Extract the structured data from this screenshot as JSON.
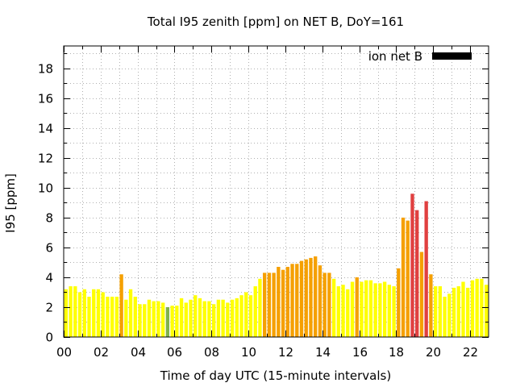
{
  "chart_data": {
    "type": "bar",
    "title": "Total I95 zenith [ppm] on NET B, DoY=161",
    "xlabel": "Time of day UTC (15-minute intervals)",
    "ylabel": "I95 [ppm]",
    "xlim": [
      0,
      23
    ],
    "ylim": [
      0,
      19.5
    ],
    "yticks": [
      0,
      2,
      4,
      6,
      8,
      10,
      12,
      14,
      16,
      18
    ],
    "xticks": [
      0,
      2,
      4,
      6,
      8,
      10,
      12,
      14,
      16,
      18,
      20,
      22
    ],
    "xtick_labels": [
      "00",
      "02",
      "04",
      "06",
      "08",
      "10",
      "12",
      "14",
      "16",
      "18",
      "20",
      "22"
    ],
    "grid": true,
    "legend": {
      "label": "ion net B",
      "color": "#000000",
      "placement": "top-right"
    },
    "bar_width_hours": 0.19,
    "x": [
      0.125,
      0.375,
      0.625,
      0.875,
      1.125,
      1.375,
      1.625,
      1.875,
      2.125,
      2.375,
      2.625,
      2.875,
      3.125,
      3.375,
      3.625,
      3.875,
      4.125,
      4.375,
      4.625,
      4.875,
      5.125,
      5.375,
      5.625,
      5.875,
      6.125,
      6.375,
      6.625,
      6.875,
      7.125,
      7.375,
      7.625,
      7.875,
      8.125,
      8.375,
      8.625,
      8.875,
      9.125,
      9.375,
      9.625,
      9.875,
      10.125,
      10.375,
      10.625,
      10.875,
      11.125,
      11.375,
      11.625,
      11.875,
      12.125,
      12.375,
      12.625,
      12.875,
      13.125,
      13.375,
      13.625,
      13.875,
      14.125,
      14.375,
      14.625,
      14.875,
      15.125,
      15.375,
      15.625,
      15.875,
      16.125,
      16.375,
      16.625,
      16.875,
      17.125,
      17.375,
      17.625,
      17.875,
      18.125,
      18.375,
      18.625,
      18.875,
      19.125,
      19.375,
      19.625,
      19.875,
      20.125,
      20.375,
      20.625,
      20.875,
      21.125,
      21.375,
      21.625,
      21.875,
      22.125,
      22.375,
      22.625,
      22.875
    ],
    "values": [
      3.2,
      3.4,
      3.4,
      3.0,
      3.2,
      2.7,
      3.2,
      3.2,
      3.0,
      2.7,
      2.7,
      2.7,
      4.2,
      2.5,
      3.2,
      2.7,
      2.2,
      2.2,
      2.5,
      2.4,
      2.4,
      2.3,
      2.0,
      2.1,
      2.1,
      2.6,
      2.3,
      2.5,
      2.8,
      2.6,
      2.4,
      2.4,
      2.2,
      2.5,
      2.5,
      2.3,
      2.5,
      2.6,
      2.8,
      3.0,
      2.8,
      3.4,
      3.9,
      4.3,
      4.3,
      4.3,
      4.7,
      4.5,
      4.7,
      4.9,
      4.9,
      5.1,
      5.2,
      5.3,
      5.4,
      4.8,
      4.3,
      4.3,
      3.9,
      3.4,
      3.5,
      3.2,
      3.7,
      4.0,
      3.7,
      3.8,
      3.8,
      3.6,
      3.6,
      3.7,
      3.5,
      3.4,
      4.6,
      8.0,
      7.8,
      9.6,
      8.5,
      5.7,
      9.1,
      4.2,
      3.4,
      3.4,
      2.7,
      2.9,
      3.3,
      3.4,
      3.7,
      3.3,
      3.8,
      3.9,
      3.9,
      3.5
    ],
    "colors": [
      "#ffff00",
      "#ffff00",
      "#ffff00",
      "#ffff00",
      "#ffff00",
      "#ffff00",
      "#ffff00",
      "#ffff00",
      "#ffff00",
      "#ffff00",
      "#ffff00",
      "#ffff00",
      "#f5a000",
      "#ffff00",
      "#ffff00",
      "#ffff00",
      "#ffff00",
      "#ffff00",
      "#ffff00",
      "#ffff00",
      "#ffff00",
      "#ffff00",
      "#7fb24c",
      "#ffff00",
      "#ffff00",
      "#ffff00",
      "#ffff00",
      "#ffff00",
      "#ffff00",
      "#ffff00",
      "#ffff00",
      "#ffff00",
      "#ffff00",
      "#ffff00",
      "#ffff00",
      "#ffff00",
      "#ffff00",
      "#ffff00",
      "#ffff00",
      "#ffff00",
      "#ffff00",
      "#ffff00",
      "#ffff00",
      "#f5a000",
      "#f5a000",
      "#f5a000",
      "#f5a000",
      "#f5a000",
      "#f5a000",
      "#f5a000",
      "#f5a000",
      "#f5a000",
      "#f5a000",
      "#f5a000",
      "#f5a000",
      "#f5a000",
      "#f5a000",
      "#f5a000",
      "#ffff00",
      "#ffff00",
      "#ffff00",
      "#ffff00",
      "#ffff00",
      "#f5a000",
      "#ffff00",
      "#ffff00",
      "#ffff00",
      "#ffff00",
      "#ffff00",
      "#ffff00",
      "#ffff00",
      "#ffff00",
      "#f5a000",
      "#f5a000",
      "#f5a000",
      "#e04040",
      "#e04040",
      "#f5a000",
      "#e04040",
      "#f5a000",
      "#ffff00",
      "#ffff00",
      "#ffff00",
      "#ffff00",
      "#ffff00",
      "#ffff00",
      "#ffff00",
      "#ffff00",
      "#ffff00",
      "#ffff00",
      "#ffff00",
      "#ffff00"
    ]
  }
}
